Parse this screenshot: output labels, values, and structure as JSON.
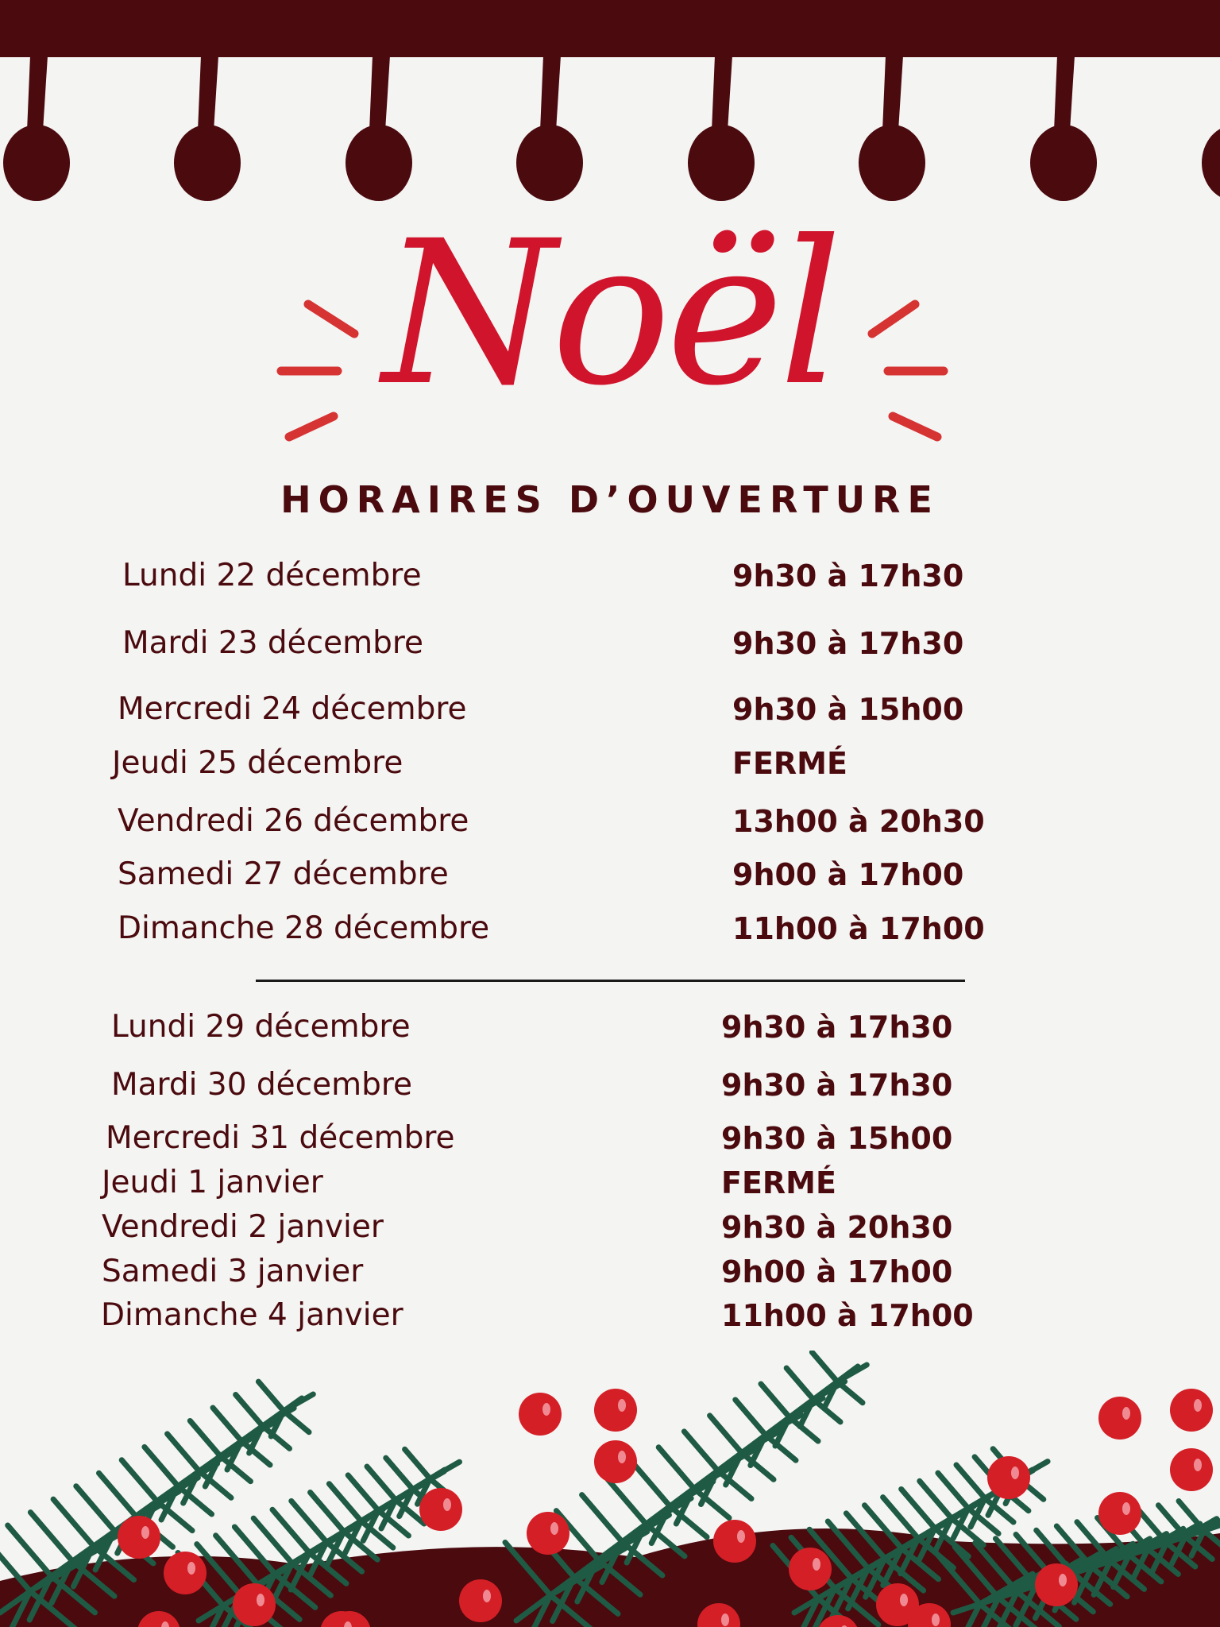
{
  "header": {
    "title": "Noël",
    "subtitle": "HORAIRES D’OUVERTURE"
  },
  "colors": {
    "dark_red": "#4a0a0e",
    "red": "#d0142c",
    "green": "#1f5a44",
    "background": "#f4f4f3"
  },
  "week1": [
    {
      "day": "Lundi 22 décembre",
      "hours": "9h30 à 17h30"
    },
    {
      "day": "Mardi 23 décembre",
      "hours": "9h30 à 17h30"
    },
    {
      "day": "Mercredi 24 décembre",
      "hours": "9h30 à 15h00"
    },
    {
      "day": "Jeudi 25 décembre",
      "hours": "FERMÉ"
    },
    {
      "day": "Vendredi 26 décembre",
      "hours": "13h00 à 20h30"
    },
    {
      "day": "Samedi 27 décembre",
      "hours": "9h00 à 17h00"
    },
    {
      "day": "Dimanche 28 décembre",
      "hours": "11h00 à 17h00"
    }
  ],
  "week2": [
    {
      "day": "Lundi 29 décembre",
      "hours": "9h30 à 17h30"
    },
    {
      "day": "Mardi 30 décembre",
      "hours": "9h30 à 17h30"
    },
    {
      "day": "Mercredi 31 décembre",
      "hours": "9h30 à 15h00"
    },
    {
      "day": "Jeudi 1 janvier",
      "hours": "FERMÉ"
    },
    {
      "day": "Vendredi 2 janvier",
      "hours": "9h30 à 20h30"
    },
    {
      "day": "Samedi 3 janvier",
      "hours": "9h00 à 17h00"
    },
    {
      "day": "Dimanche 4 janvier",
      "hours": "11h00 à 17h00"
    }
  ]
}
